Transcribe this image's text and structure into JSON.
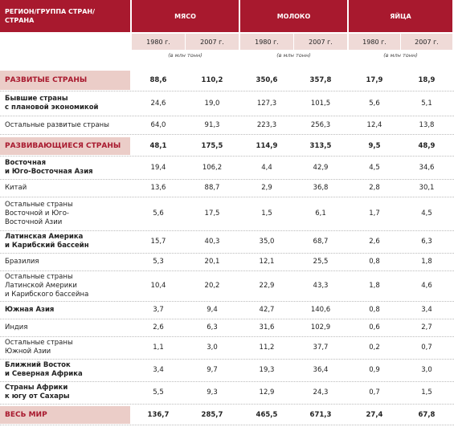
{
  "table": {
    "header": {
      "region": "РЕГИОН/ГРУППА СТРАН/\nСТРАНА",
      "groups": [
        "МЯСО",
        "МОЛОКО",
        "ЯЙЦА"
      ],
      "years": [
        "1980 г.",
        "2007 г.",
        "1980 г.",
        "2007 г.",
        "1980 г.",
        "2007 г."
      ],
      "units": [
        "(в млн тонн)",
        "(в млн тонн)",
        "(в млн тонн)"
      ]
    },
    "rows": [
      {
        "kind": "section",
        "label": "РАЗВИТЫЕ СТРАНЫ",
        "values": [
          "88,6",
          "110,2",
          "350,6",
          "357,8",
          "17,9",
          "18,9"
        ]
      },
      {
        "kind": "bold",
        "label": "Бывшие страны\nс плановой экономикой",
        "values": [
          "24,6",
          "19,0",
          "127,3",
          "101,5",
          "5,6",
          "5,1"
        ]
      },
      {
        "kind": "normal",
        "label": "Остальные развитые страны",
        "values": [
          "64,0",
          "91,3",
          "223,3",
          "256,3",
          "12,4",
          "13,8"
        ]
      },
      {
        "kind": "section",
        "label": "РАЗВИВАЮЩИЕСЯ СТРАНЫ",
        "values": [
          "48,1",
          "175,5",
          "114,9",
          "313,5",
          "9,5",
          "48,9"
        ]
      },
      {
        "kind": "bold",
        "label": "Восточная\nи Юго-Восточная Азия",
        "values": [
          "19,4",
          "106,2",
          "4,4",
          "42,9",
          "4,5",
          "34,6"
        ]
      },
      {
        "kind": "normal",
        "label": "Китай",
        "values": [
          "13,6",
          "88,7",
          "2,9",
          "36,8",
          "2,8",
          "30,1"
        ]
      },
      {
        "kind": "normal",
        "label": "Остальные страны\nВосточной и Юго-\nВосточной Азии",
        "values": [
          "5,6",
          "17,5",
          "1,5",
          "6,1",
          "1,7",
          "4,5"
        ]
      },
      {
        "kind": "bold",
        "label": "Латинская Америка\nи Карибский бассейн",
        "values": [
          "15,7",
          "40,3",
          "35,0",
          "68,7",
          "2,6",
          "6,3"
        ]
      },
      {
        "kind": "normal",
        "label": "Бразилия",
        "values": [
          "5,3",
          "20,1",
          "12,1",
          "25,5",
          "0,8",
          "1,8"
        ]
      },
      {
        "kind": "normal",
        "label": "Остальные страны\nЛатинской Америки\nи Карибского бассейна",
        "values": [
          "10,4",
          "20,2",
          "22,9",
          "43,3",
          "1,8",
          "4,6"
        ]
      },
      {
        "kind": "bold",
        "label": "Южная Азия",
        "values": [
          "3,7",
          "9,4",
          "42,7",
          "140,6",
          "0,8",
          "3,4"
        ]
      },
      {
        "kind": "normal",
        "label": "Индия",
        "values": [
          "2,6",
          "6,3",
          "31,6",
          "102,9",
          "0,6",
          "2,7"
        ]
      },
      {
        "kind": "normal",
        "label": "Остальные страны\nЮжной Азии",
        "values": [
          "1,1",
          "3,0",
          "11,2",
          "37,7",
          "0,2",
          "0,7"
        ]
      },
      {
        "kind": "bold",
        "label": "Ближний Восток\nи Северная Африка",
        "values": [
          "3,4",
          "9,7",
          "19,3",
          "36,4",
          "0,9",
          "3,0"
        ]
      },
      {
        "kind": "bold",
        "label": "Страны Африки\nк югу от Сахары",
        "values": [
          "5,5",
          "9,3",
          "12,9",
          "24,3",
          "0,7",
          "1,5"
        ]
      },
      {
        "kind": "section",
        "label": "ВЕСЬ МИР",
        "values": [
          "136,7",
          "285,7",
          "465,5",
          "671,3",
          "27,4",
          "67,8"
        ]
      }
    ]
  }
}
